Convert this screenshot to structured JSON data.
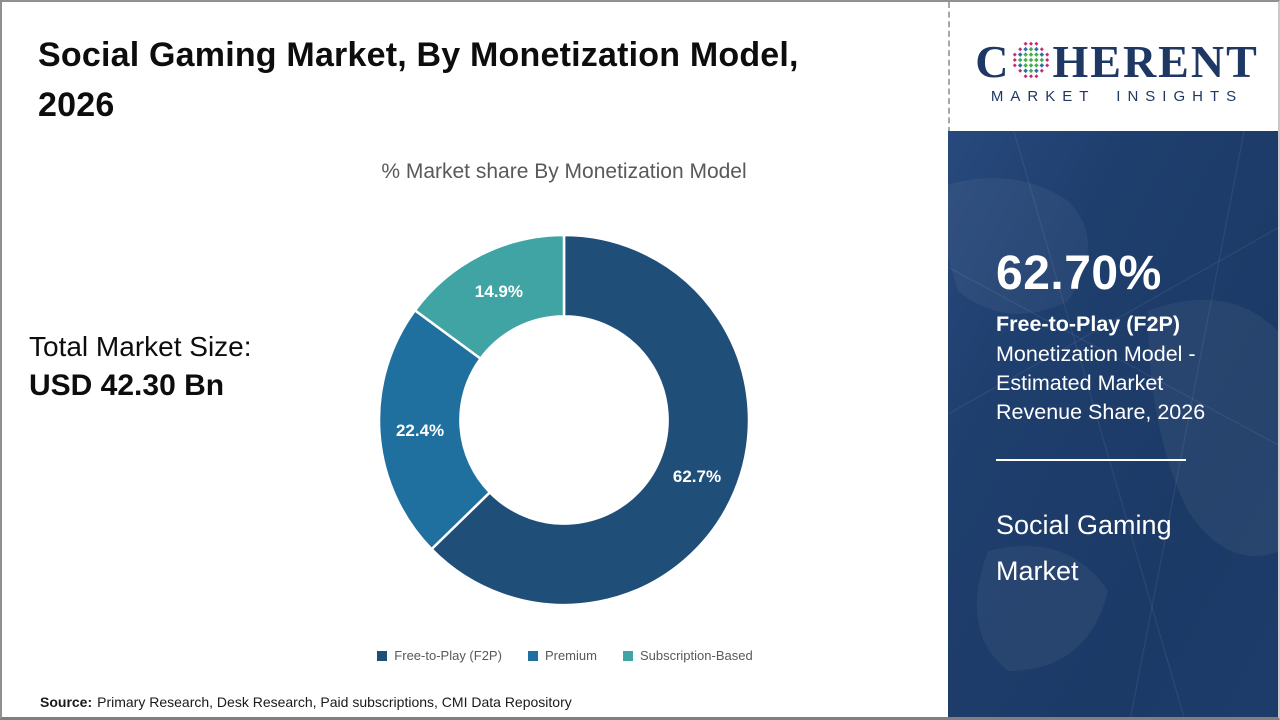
{
  "header": {
    "title_line1": "Social Gaming Market, By Monetization Model,",
    "title_line2": "2026"
  },
  "logo": {
    "prefix": "C",
    "suffix": "HERENT",
    "tagline": "MARKET INSIGHTS",
    "brand_color": "#1e3863",
    "globe_dot_colors": [
      "#45b04c",
      "#2f6ea6",
      "#c22a72"
    ]
  },
  "total_market": {
    "label": "Total Market Size:",
    "value": "USD 42.30 Bn"
  },
  "chart_data": {
    "type": "pie",
    "subtype": "donut",
    "title": "% Market share By Monetization Model",
    "categories": [
      "Free-to-Play (F2P)",
      "Premium",
      "Subscription-Based"
    ],
    "values": [
      62.7,
      22.4,
      14.9
    ],
    "labels": [
      "62.7%",
      "22.4%",
      "14.9%"
    ],
    "colors": [
      "#1f4e79",
      "#1f6f9f",
      "#41a4a4"
    ],
    "start_angle_deg": 0,
    "direction": "clockwise",
    "legend_position": "bottom",
    "inner_radius_ratio": 0.56,
    "label_color": "#ffffff"
  },
  "sidebar": {
    "bg_color": "#1d3c6a",
    "stat_value": "62.70%",
    "stat_title": "Free-to-Play (F2P)",
    "stat_desc": "Monetization Model - Estimated Market Revenue Share, 2026",
    "market_name": "Social Gaming Market"
  },
  "footer": {
    "source_label": "Source:",
    "source_text": "Primary Research, Desk Research, Paid subscriptions, CMI Data Repository"
  }
}
